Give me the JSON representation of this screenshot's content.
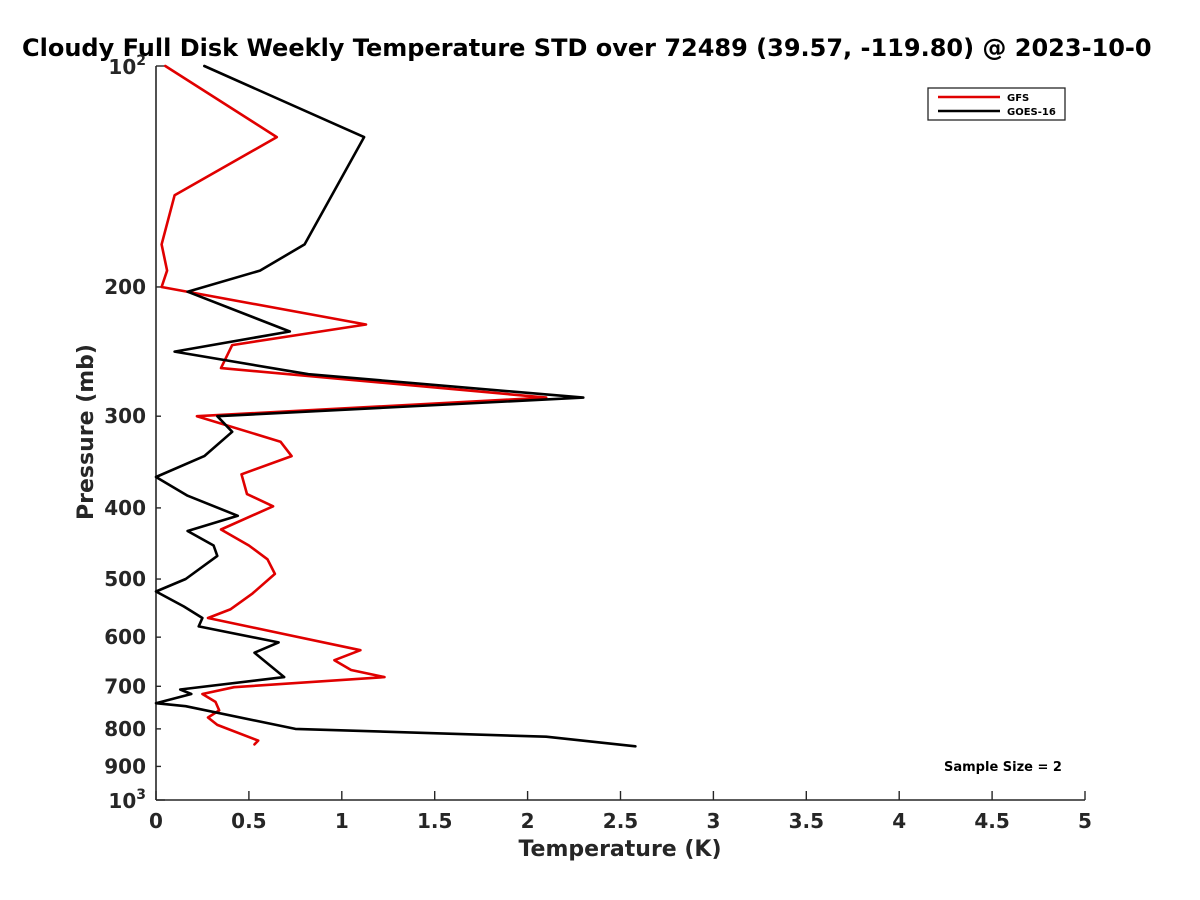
{
  "chart_data": {
    "type": "line",
    "title": "Cloudy Full Disk Weekly Temperature STD over 72489 (39.57, -119.80) @ 2023-10-0",
    "xlabel": "Temperature (K)",
    "ylabel": "Pressure (mb)",
    "xlim": [
      0,
      5
    ],
    "ylim": [
      1000,
      100
    ],
    "y_scale": "log",
    "y_reversed": true,
    "x_ticks": [
      "0",
      "0.5",
      "1",
      "1.5",
      "2",
      "2.5",
      "3",
      "3.5",
      "4",
      "4.5",
      "5"
    ],
    "y_ticks": [
      {
        "value": 100,
        "base": "10",
        "exp": "2",
        "label": ""
      },
      {
        "value": 200,
        "label": "200"
      },
      {
        "value": 300,
        "label": "300"
      },
      {
        "value": 400,
        "label": "400"
      },
      {
        "value": 500,
        "label": "500"
      },
      {
        "value": 600,
        "label": "600"
      },
      {
        "value": 700,
        "label": "700"
      },
      {
        "value": 800,
        "label": "800"
      },
      {
        "value": 900,
        "label": "900"
      },
      {
        "value": 1000,
        "base": "10",
        "exp": "3",
        "label": ""
      }
    ],
    "grid": false,
    "legend_position": "top-right",
    "annotation": "Sample Size = 2",
    "series": [
      {
        "name": "GFS",
        "color": "#e00000",
        "points": [
          [
            0.05,
            100
          ],
          [
            0.65,
            125
          ],
          [
            0.1,
            150
          ],
          [
            0.03,
            175
          ],
          [
            0.06,
            190
          ],
          [
            0.03,
            200
          ],
          [
            1.13,
            225
          ],
          [
            0.41,
            240
          ],
          [
            0.35,
            258
          ],
          [
            2.1,
            283
          ],
          [
            0.22,
            300
          ],
          [
            0.67,
            325
          ],
          [
            0.73,
            340
          ],
          [
            0.46,
            360
          ],
          [
            0.49,
            383
          ],
          [
            0.63,
            398
          ],
          [
            0.35,
            428
          ],
          [
            0.5,
            450
          ],
          [
            0.6,
            470
          ],
          [
            0.64,
            492
          ],
          [
            0.52,
            523
          ],
          [
            0.4,
            550
          ],
          [
            0.28,
            565
          ],
          [
            1.1,
            625
          ],
          [
            0.96,
            645
          ],
          [
            1.05,
            665
          ],
          [
            1.23,
            680
          ],
          [
            0.42,
            702
          ],
          [
            0.25,
            717
          ],
          [
            0.32,
            735
          ],
          [
            0.34,
            755
          ],
          [
            0.28,
            772
          ],
          [
            0.33,
            790
          ],
          [
            0.55,
            830
          ],
          [
            0.53,
            840
          ]
        ]
      },
      {
        "name": "GOES-16",
        "color": "#000000",
        "points": [
          [
            0.26,
            100
          ],
          [
            1.12,
            125
          ],
          [
            0.8,
            175
          ],
          [
            0.56,
            190
          ],
          [
            0.17,
            203
          ],
          [
            0.72,
            230
          ],
          [
            0.1,
            245
          ],
          [
            0.82,
            263
          ],
          [
            2.3,
            283
          ],
          [
            0.33,
            300
          ],
          [
            0.41,
            315
          ],
          [
            0.26,
            340
          ],
          [
            0.0,
            363
          ],
          [
            0.17,
            385
          ],
          [
            0.44,
            410
          ],
          [
            0.17,
            430
          ],
          [
            0.31,
            450
          ],
          [
            0.33,
            465
          ],
          [
            0.16,
            500
          ],
          [
            0.0,
            520
          ],
          [
            0.15,
            545
          ],
          [
            0.25,
            565
          ],
          [
            0.23,
            580
          ],
          [
            0.66,
            610
          ],
          [
            0.53,
            630
          ],
          [
            0.69,
            680
          ],
          [
            0.13,
            707
          ],
          [
            0.19,
            717
          ],
          [
            0.0,
            738
          ],
          [
            0.16,
            745
          ],
          [
            0.75,
            800
          ],
          [
            2.1,
            820
          ],
          [
            2.58,
            845
          ]
        ]
      }
    ]
  }
}
